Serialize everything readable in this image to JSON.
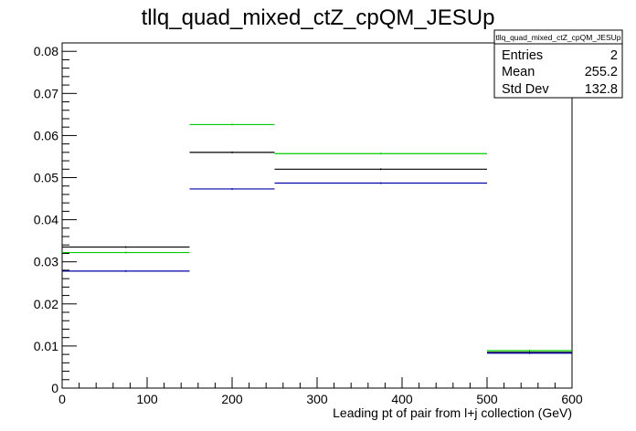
{
  "chart_data": {
    "type": "histogram",
    "title": "tllq_quad_mixed_ctZ_cpQM_JESUp",
    "xlabel": "Leading pt of pair from l+j collection (GeV)",
    "ylabel": "",
    "xlim": [
      0,
      600
    ],
    "ylim": [
      0,
      0.082
    ],
    "x_ticks": [
      0,
      100,
      200,
      300,
      400,
      500,
      600
    ],
    "x_tick_labels": [
      "0",
      "100",
      "200",
      "300",
      "400",
      "500",
      "600"
    ],
    "y_ticks": [
      0,
      0.01,
      0.02,
      0.03,
      0.04,
      0.05,
      0.06,
      0.07,
      0.08
    ],
    "y_tick_labels": [
      "0",
      "0.01",
      "0.02",
      "0.03",
      "0.04",
      "0.05",
      "0.06",
      "0.07",
      "0.08"
    ],
    "bin_edges": [
      0,
      150,
      250,
      500,
      600
    ],
    "series": [
      {
        "color": "#000000",
        "values": [
          0.0335,
          0.056,
          0.052,
          0.0085
        ]
      },
      {
        "color": "#00cc00",
        "values": [
          0.0322,
          0.0626,
          0.0557,
          0.0089
        ]
      },
      {
        "color": "#0000aa",
        "values": [
          0.0278,
          0.0473,
          0.0487,
          0.0083
        ]
      }
    ],
    "grid": false,
    "stats_box": {
      "title": "tllq_quad_mixed_ctZ_cpQM_JESUp",
      "rows": [
        {
          "label": "Entries",
          "value": "2"
        },
        {
          "label": "Mean",
          "value": "255.2"
        },
        {
          "label": "Std Dev",
          "value": "132.8"
        }
      ]
    }
  }
}
